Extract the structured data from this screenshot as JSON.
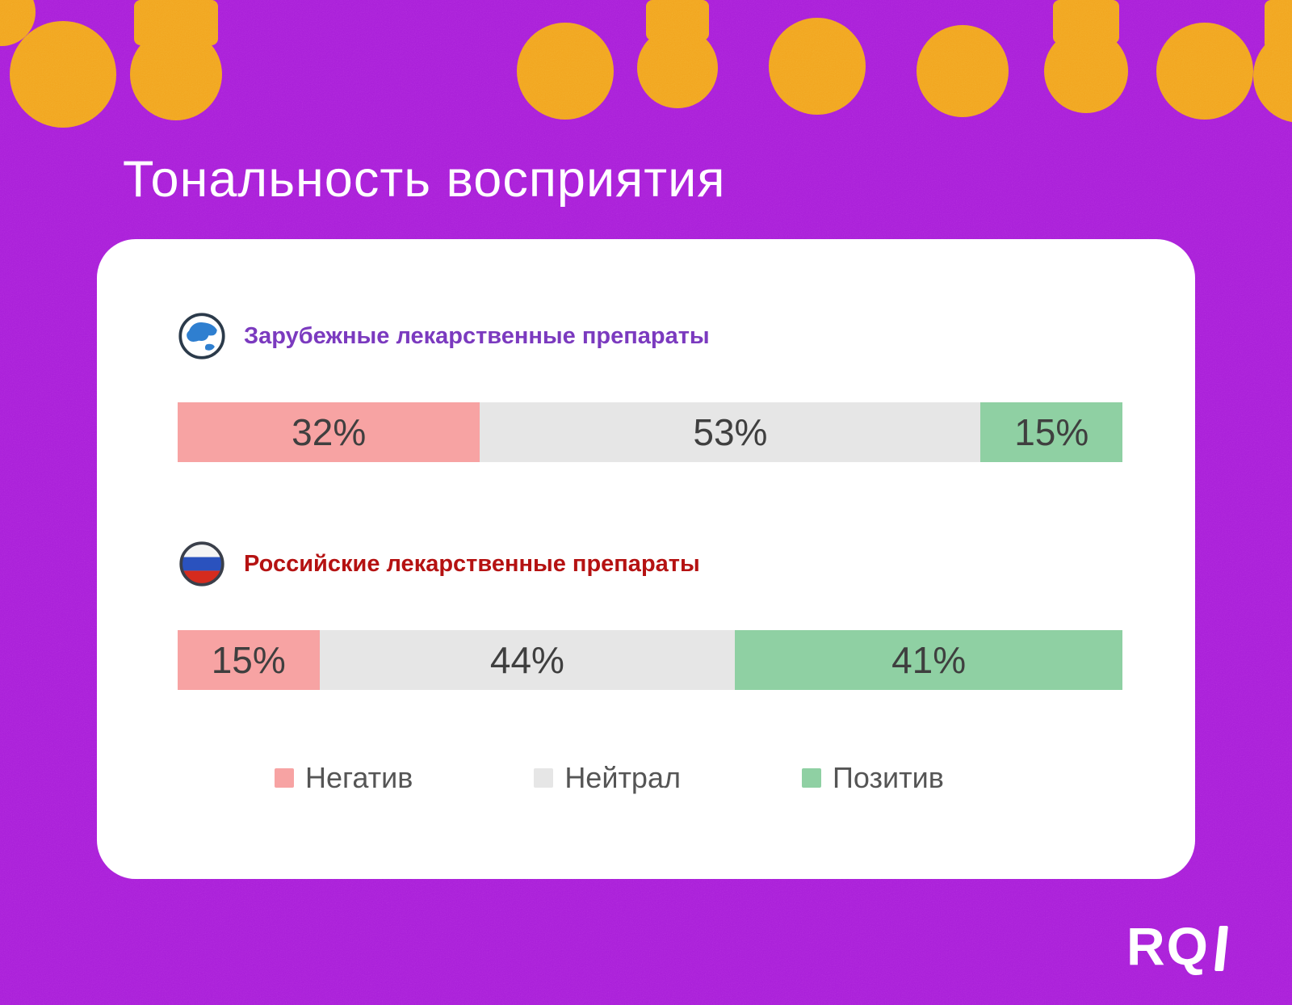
{
  "page": {
    "title": "Тональность восприятия",
    "logo_text": "RQ"
  },
  "chart_data": {
    "type": "bar",
    "stacked": true,
    "orientation": "horizontal",
    "unit": "%",
    "background_color": "#a81dd8",
    "accent_blob_color": "#f1a41d",
    "groups": [
      {
        "label": "Зарубежные лекарственные препараты",
        "icon": "globe-icon",
        "label_color": "#7b3abf",
        "values": [
          32,
          53,
          15
        ],
        "display": [
          "32%",
          "53%",
          "15%"
        ]
      },
      {
        "label": "Российские лекарственные препараты",
        "icon": "russia-flag-icon",
        "label_color": "#b51212",
        "values": [
          15,
          44,
          41
        ],
        "display": [
          "15%",
          "44%",
          "41%"
        ]
      }
    ],
    "legend": [
      {
        "label": "Негатив",
        "color": "#f7a3a3"
      },
      {
        "label": "Нейтрал",
        "color": "#e6e6e6"
      },
      {
        "label": "Позитив",
        "color": "#8fd0a3"
      }
    ]
  }
}
